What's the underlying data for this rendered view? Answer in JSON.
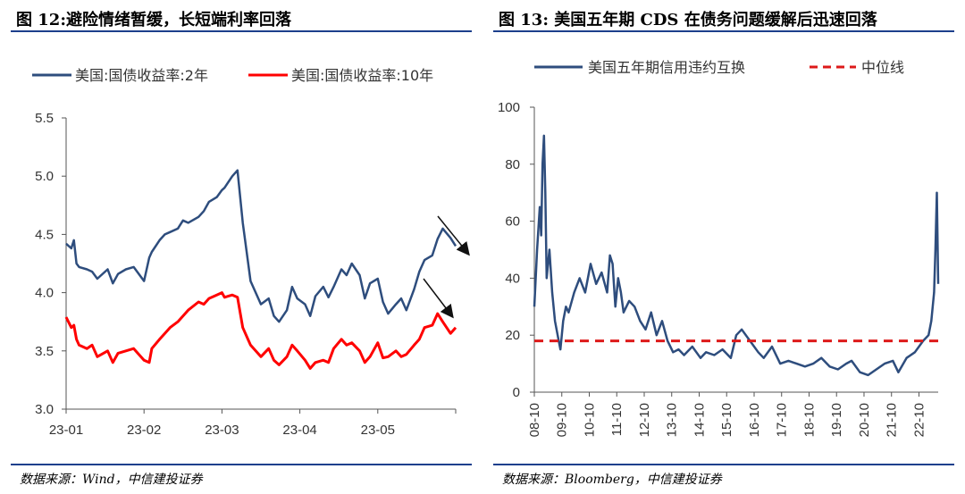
{
  "left": {
    "figure_title": "图 12:避险情绪暂缓，长短端利率回落",
    "source": "数据来源：Wind，中信建投证券",
    "chart_data": {
      "type": "line",
      "x_tick_labels": [
        "23-01",
        "23-02",
        "23-03",
        "23-04",
        "23-05"
      ],
      "y_tick_labels": [
        "3.0",
        "3.5",
        "4.0",
        "4.5",
        "5.0",
        "5.5"
      ],
      "ylim": [
        3.0,
        5.5
      ],
      "xlim": [
        "2023-01-01",
        "2023-05-31"
      ],
      "legend_position": "top",
      "series": [
        {
          "name": "美国:国债收益率:2年",
          "color": "#2e4d7d",
          "x": [
            "2023-01-01",
            "2023-01-03",
            "2023-01-04",
            "2023-01-05",
            "2023-01-06",
            "2023-01-09",
            "2023-01-11",
            "2023-01-13",
            "2023-01-17",
            "2023-01-19",
            "2023-01-21",
            "2023-01-24",
            "2023-01-27",
            "2023-01-31",
            "2023-02-02",
            "2023-02-03",
            "2023-02-06",
            "2023-02-08",
            "2023-02-10",
            "2023-02-13",
            "2023-02-15",
            "2023-02-17",
            "2023-02-21",
            "2023-02-23",
            "2023-02-25",
            "2023-02-28",
            "2023-03-02",
            "2023-03-03",
            "2023-03-06",
            "2023-03-08",
            "2023-03-10",
            "2023-03-13",
            "2023-03-15",
            "2023-03-17",
            "2023-03-20",
            "2023-03-22",
            "2023-03-24",
            "2023-03-27",
            "2023-03-29",
            "2023-03-31",
            "2023-04-03",
            "2023-04-05",
            "2023-04-07",
            "2023-04-10",
            "2023-04-12",
            "2023-04-14",
            "2023-04-17",
            "2023-04-19",
            "2023-04-21",
            "2023-04-24",
            "2023-04-26",
            "2023-04-28",
            "2023-05-01",
            "2023-05-03",
            "2023-05-05",
            "2023-05-08",
            "2023-05-10",
            "2023-05-12",
            "2023-05-15",
            "2023-05-17",
            "2023-05-19",
            "2023-05-22",
            "2023-05-24",
            "2023-05-26",
            "2023-05-29",
            "2023-05-31"
          ],
          "values": [
            4.42,
            4.38,
            4.45,
            4.25,
            4.22,
            4.2,
            4.18,
            4.12,
            4.2,
            4.08,
            4.16,
            4.2,
            4.22,
            4.1,
            4.3,
            4.35,
            4.45,
            4.5,
            4.52,
            4.55,
            4.62,
            4.6,
            4.65,
            4.7,
            4.78,
            4.82,
            4.88,
            4.9,
            5.0,
            5.05,
            4.6,
            4.1,
            4.0,
            3.9,
            3.95,
            3.8,
            3.75,
            3.85,
            4.05,
            3.95,
            3.9,
            3.8,
            3.97,
            4.05,
            3.96,
            4.05,
            4.2,
            4.15,
            4.25,
            4.15,
            3.95,
            4.08,
            4.12,
            3.92,
            3.82,
            3.9,
            3.95,
            3.85,
            4.03,
            4.18,
            4.28,
            4.32,
            4.46,
            4.55,
            4.47,
            4.4
          ]
        },
        {
          "name": "美国:国债收益率:10年",
          "color": "#ff0000",
          "x": [
            "2023-01-01",
            "2023-01-03",
            "2023-01-04",
            "2023-01-05",
            "2023-01-06",
            "2023-01-09",
            "2023-01-11",
            "2023-01-13",
            "2023-01-17",
            "2023-01-19",
            "2023-01-21",
            "2023-01-24",
            "2023-01-27",
            "2023-01-31",
            "2023-02-02",
            "2023-02-03",
            "2023-02-06",
            "2023-02-08",
            "2023-02-10",
            "2023-02-13",
            "2023-02-15",
            "2023-02-17",
            "2023-02-21",
            "2023-02-23",
            "2023-02-25",
            "2023-02-28",
            "2023-03-02",
            "2023-03-03",
            "2023-03-06",
            "2023-03-08",
            "2023-03-10",
            "2023-03-13",
            "2023-03-15",
            "2023-03-17",
            "2023-03-20",
            "2023-03-22",
            "2023-03-24",
            "2023-03-27",
            "2023-03-29",
            "2023-03-31",
            "2023-04-03",
            "2023-04-05",
            "2023-04-07",
            "2023-04-10",
            "2023-04-12",
            "2023-04-14",
            "2023-04-17",
            "2023-04-19",
            "2023-04-21",
            "2023-04-24",
            "2023-04-26",
            "2023-04-28",
            "2023-05-01",
            "2023-05-03",
            "2023-05-05",
            "2023-05-08",
            "2023-05-10",
            "2023-05-12",
            "2023-05-15",
            "2023-05-17",
            "2023-05-19",
            "2023-05-22",
            "2023-05-24",
            "2023-05-26",
            "2023-05-29",
            "2023-05-31"
          ],
          "values": [
            3.79,
            3.7,
            3.72,
            3.6,
            3.55,
            3.52,
            3.55,
            3.45,
            3.5,
            3.4,
            3.48,
            3.5,
            3.52,
            3.42,
            3.4,
            3.52,
            3.6,
            3.65,
            3.7,
            3.75,
            3.8,
            3.85,
            3.92,
            3.9,
            3.95,
            3.98,
            4.0,
            3.96,
            3.98,
            3.96,
            3.7,
            3.55,
            3.5,
            3.45,
            3.52,
            3.42,
            3.38,
            3.45,
            3.55,
            3.5,
            3.42,
            3.35,
            3.4,
            3.42,
            3.4,
            3.52,
            3.6,
            3.55,
            3.57,
            3.5,
            3.4,
            3.45,
            3.57,
            3.44,
            3.45,
            3.5,
            3.45,
            3.47,
            3.55,
            3.6,
            3.7,
            3.72,
            3.82,
            3.75,
            3.65,
            3.7
          ]
        }
      ],
      "annotations": [
        "arrow-down-right",
        "arrow-down-right"
      ]
    }
  },
  "right": {
    "figure_title": "图 13: 美国五年期 CDS 在债务问题缓解后迅速回落",
    "source": "数据来源：Bloomberg，中信建投证券",
    "chart_data": {
      "type": "line",
      "x_tick_labels": [
        "08-10",
        "09-10",
        "10-10",
        "11-10",
        "12-10",
        "13-10",
        "14-10",
        "15-10",
        "16-10",
        "17-10",
        "18-10",
        "19-10",
        "20-10",
        "21-10",
        "22-10"
      ],
      "y_tick_labels": [
        "0",
        "20",
        "40",
        "60",
        "80",
        "100"
      ],
      "ylim": [
        0,
        100
      ],
      "xlim": [
        2008.75,
        2023.45
      ],
      "legend_position": "top",
      "series": [
        {
          "name": "美国五年期信用违约互换",
          "color": "#2e4d7d",
          "x": [
            2008.75,
            2008.85,
            2008.95,
            2009.0,
            2009.05,
            2009.1,
            2009.15,
            2009.2,
            2009.3,
            2009.4,
            2009.5,
            2009.6,
            2009.7,
            2009.8,
            2009.9,
            2010.0,
            2010.2,
            2010.4,
            2010.6,
            2010.8,
            2011.0,
            2011.2,
            2011.4,
            2011.5,
            2011.6,
            2011.7,
            2011.8,
            2011.9,
            2012.0,
            2012.2,
            2012.4,
            2012.6,
            2012.8,
            2013.0,
            2013.2,
            2013.4,
            2013.6,
            2013.8,
            2014.0,
            2014.2,
            2014.5,
            2014.8,
            2015.0,
            2015.3,
            2015.6,
            2015.9,
            2016.1,
            2016.3,
            2016.6,
            2016.9,
            2017.1,
            2017.4,
            2017.7,
            2018.0,
            2018.3,
            2018.6,
            2018.9,
            2019.2,
            2019.5,
            2019.8,
            2020.1,
            2020.3,
            2020.6,
            2020.9,
            2021.2,
            2021.5,
            2021.8,
            2022.0,
            2022.3,
            2022.6,
            2022.9,
            2023.1,
            2023.2,
            2023.3,
            2023.35,
            2023.4,
            2023.45
          ],
          "values": [
            30,
            50,
            65,
            55,
            80,
            90,
            70,
            40,
            50,
            35,
            25,
            20,
            15,
            25,
            30,
            28,
            35,
            40,
            35,
            45,
            38,
            42,
            35,
            48,
            45,
            30,
            40,
            35,
            28,
            32,
            30,
            25,
            22,
            28,
            20,
            25,
            18,
            14,
            15,
            13,
            16,
            12,
            14,
            13,
            15,
            12,
            20,
            22,
            18,
            14,
            12,
            16,
            10,
            11,
            10,
            9,
            10,
            12,
            9,
            8,
            10,
            11,
            7,
            6,
            8,
            10,
            11,
            7,
            12,
            14,
            18,
            20,
            25,
            35,
            50,
            70,
            38
          ]
        },
        {
          "name": "中位线",
          "color": "#dd1a1a",
          "values": [
            18,
            18
          ]
        }
      ]
    }
  }
}
